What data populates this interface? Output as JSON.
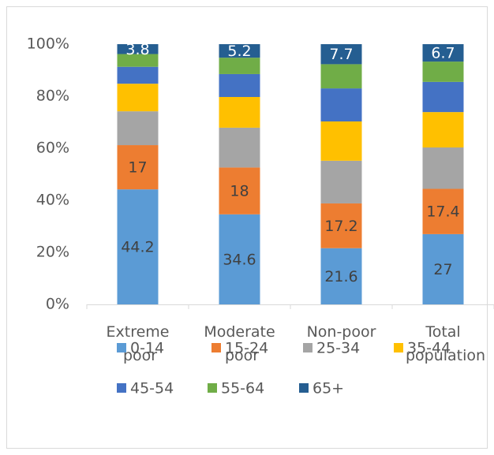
{
  "chart_data": {
    "type": "stacked_bar",
    "categories": [
      "Extreme poor",
      "Moderate poor",
      "Non-poor",
      "Total population"
    ],
    "series": [
      {
        "name": "0-14",
        "color": "#5b9bd5",
        "values": [
          44.2,
          34.6,
          21.6,
          27
        ],
        "data_labels": true
      },
      {
        "name": "15-24",
        "color": "#ed7d31",
        "values": [
          17,
          18,
          17.2,
          17.4
        ],
        "data_labels": true
      },
      {
        "name": "25-34",
        "color": "#a5a5a5",
        "values": [
          13,
          15.3,
          16.4,
          15.9
        ],
        "data_labels": false
      },
      {
        "name": "35-44",
        "color": "#ffc000",
        "values": [
          10.6,
          11.8,
          15.1,
          13.6
        ],
        "data_labels": false
      },
      {
        "name": "45-54",
        "color": "#4472c4",
        "values": [
          6.5,
          8.8,
          12.7,
          11.6
        ],
        "data_labels": false
      },
      {
        "name": "55-64",
        "color": "#70ad47",
        "values": [
          4.9,
          6.3,
          9.3,
          7.8
        ],
        "data_labels": false
      },
      {
        "name": "65+",
        "color": "#255e91",
        "values": [
          3.8,
          5.2,
          7.7,
          6.7
        ],
        "data_labels": true
      }
    ],
    "ylim": [
      0,
      100
    ],
    "yticks": [
      {
        "value": 0,
        "label": "0%"
      },
      {
        "value": 20,
        "label": "20%"
      },
      {
        "value": 40,
        "label": "40%"
      },
      {
        "value": 60,
        "label": "60%"
      },
      {
        "value": 80,
        "label": "80%"
      },
      {
        "value": 100,
        "label": "100%"
      }
    ],
    "grid": false,
    "legend": "bottom"
  }
}
